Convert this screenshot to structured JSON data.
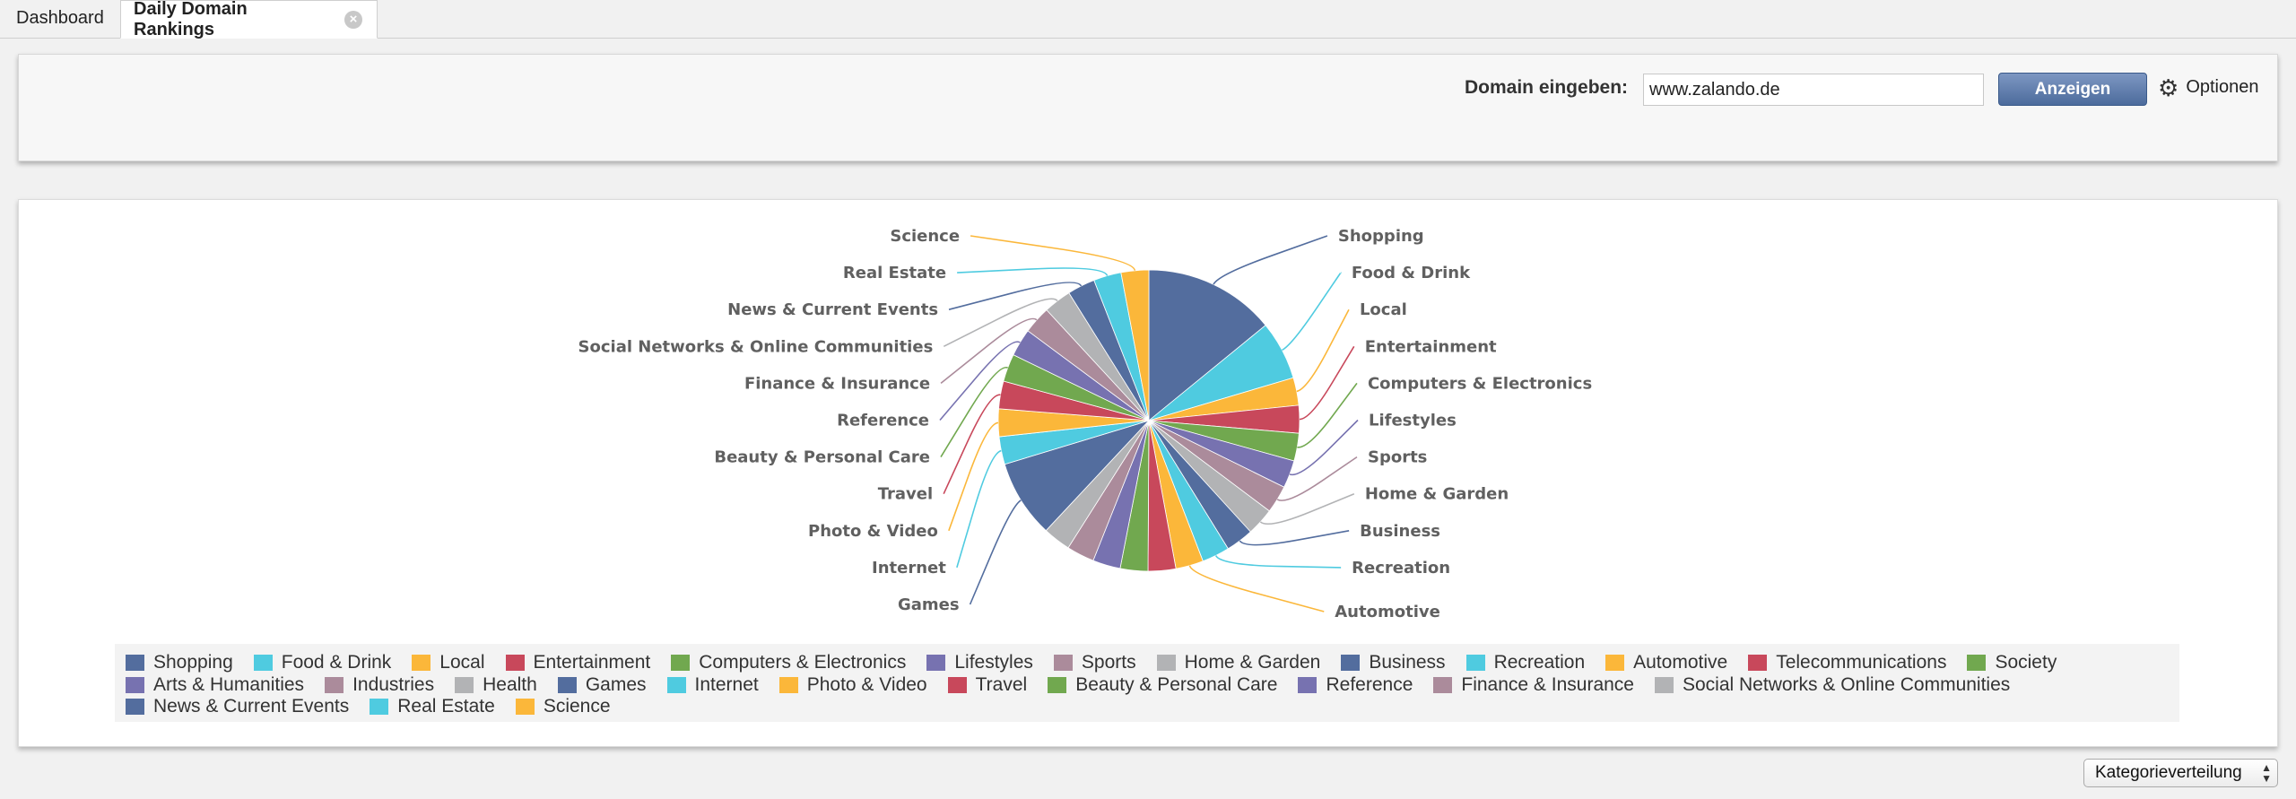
{
  "tabs": {
    "dashboard": "Dashboard",
    "active": "Daily Domain Rankings",
    "close_icon": "×"
  },
  "domain_form": {
    "label": "Domain eingeben:",
    "value": "www.zalando.de",
    "button": "Anzeigen",
    "options": "Optionen"
  },
  "colors": [
    "#536d9e",
    "#4fcbe0",
    "#fbb73a",
    "#c8485b",
    "#71a84f",
    "#7772b0",
    "#ab8b9b",
    "#b2b3b5"
  ],
  "chart_data": {
    "type": "pie",
    "title": "",
    "slices": [
      {
        "label": "Shopping",
        "value": 15.2
      },
      {
        "label": "Food & Drink",
        "value": 6.8
      },
      {
        "label": "Local",
        "value": 3.2
      },
      {
        "label": "Entertainment",
        "value": 3.2
      },
      {
        "label": "Computers & Electronics",
        "value": 3.2
      },
      {
        "label": "Lifestyles",
        "value": 3.2
      },
      {
        "label": "Sports",
        "value": 3.2
      },
      {
        "label": "Home & Garden",
        "value": 3.2
      },
      {
        "label": "Business",
        "value": 3.2
      },
      {
        "label": "Recreation",
        "value": 3.2
      },
      {
        "label": "Automotive",
        "value": 3.2
      },
      {
        "label": "Telecommunications",
        "value": 3.2
      },
      {
        "label": "Society",
        "value": 3.2
      },
      {
        "label": "Arts & Humanities",
        "value": 3.2
      },
      {
        "label": "Industries",
        "value": 3.2
      },
      {
        "label": "Health",
        "value": 3.2
      },
      {
        "label": "Games",
        "value": 9.0
      },
      {
        "label": "Internet",
        "value": 3.2
      },
      {
        "label": "Photo & Video",
        "value": 3.2
      },
      {
        "label": "Travel",
        "value": 3.2
      },
      {
        "label": "Beauty & Personal Care",
        "value": 3.2
      },
      {
        "label": "Reference",
        "value": 3.2
      },
      {
        "label": "Finance & Insurance",
        "value": 3.2
      },
      {
        "label": "Social Networks & Online Communities",
        "value": 3.2
      },
      {
        "label": "News & Current Events",
        "value": 3.2
      },
      {
        "label": "Real Estate",
        "value": 3.2
      },
      {
        "label": "Science",
        "value": 3.2
      }
    ],
    "labeled_slices": [
      "Shopping",
      "Food & Drink",
      "Local",
      "Entertainment",
      "Computers & Electronics",
      "Lifestyles",
      "Sports",
      "Home & Garden",
      "Business",
      "Recreation",
      "Automotive",
      "Games",
      "Internet",
      "Photo & Video",
      "Travel",
      "Beauty & Personal Care",
      "Reference",
      "Finance & Insurance",
      "Social Networks & Online Communities",
      "News & Current Events",
      "Real Estate",
      "Science"
    ],
    "legend": [
      "Shopping",
      "Food & Drink",
      "Local",
      "Entertainment",
      "Computers & Electronics",
      "Lifestyles",
      "Sports",
      "Home & Garden",
      "Business",
      "Recreation",
      "Automotive",
      "Telecommunications",
      "Society",
      "Arts & Humanities",
      "Industries",
      "Health",
      "Games",
      "Internet",
      "Photo & Video",
      "Travel",
      "Beauty & Personal Care",
      "Reference",
      "Finance & Insurance",
      "Social Networks & Online Communities",
      "News & Current Events",
      "Real Estate",
      "Science"
    ]
  },
  "view_select": {
    "value": "Kategorieverteilung"
  }
}
